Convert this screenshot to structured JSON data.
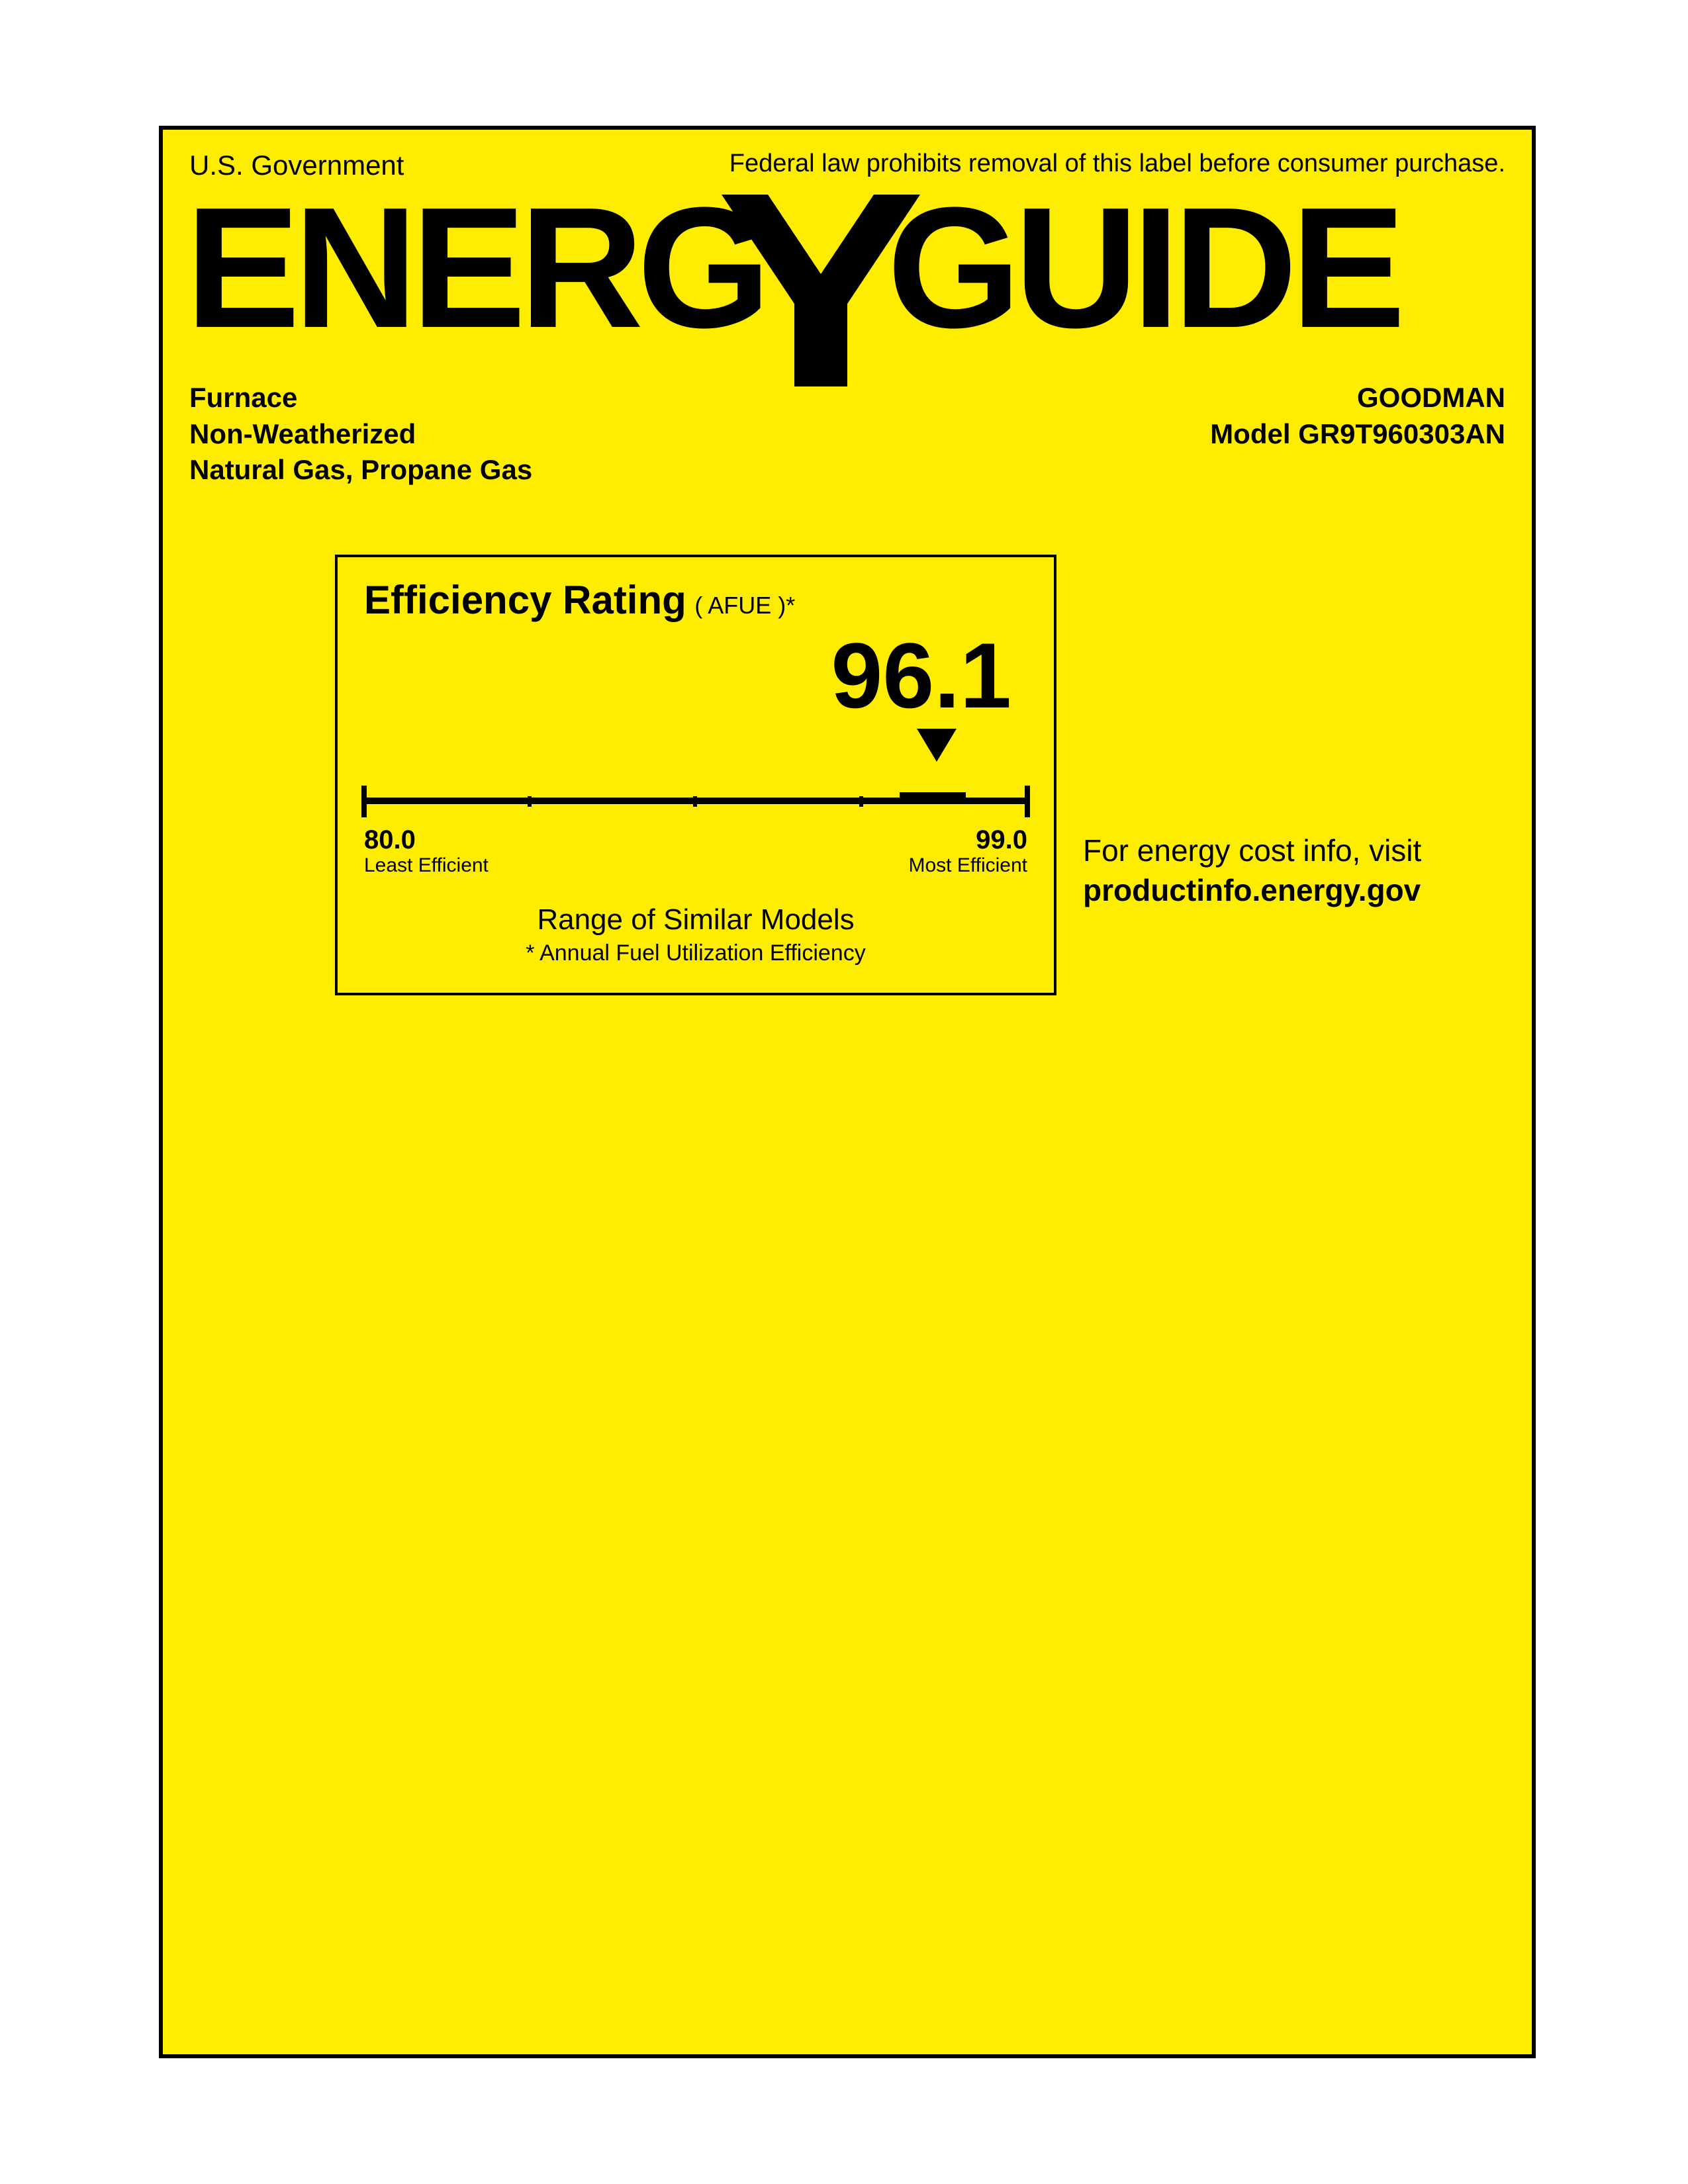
{
  "colors": {
    "label_bg": "#feed01",
    "text": "#000000",
    "border": "#000000",
    "page_bg": "#ffffff"
  },
  "header": {
    "gov": "U.S. Government",
    "federal_law": "Federal law prohibits removal of this label before consumer purchase."
  },
  "logo_alt": "ENERGYGUIDE",
  "product": {
    "type": "Furnace",
    "weather": "Non-Weatherized",
    "fuel": "Natural Gas, Propane Gas"
  },
  "manufacturer": {
    "brand": "GOODMAN",
    "model_prefix": "Model ",
    "model": "GR9T960303AN"
  },
  "rating": {
    "title": "Efficiency Rating",
    "subtitle": "( AFUE )*",
    "value": "96.1",
    "value_fontsize": 140,
    "scale": {
      "min": 80.0,
      "max": 99.0,
      "min_label": "80.0",
      "max_label": "99.0",
      "min_text": "Least Efficient",
      "max_text": "Most Efficient",
      "tick_positions_pct": [
        0,
        25,
        50,
        75,
        100
      ],
      "value_position_pct": 84.7,
      "line_thickness": 10
    },
    "range_text": "Range of Similar Models",
    "afue_note": "* Annual Fuel Utilization Efficiency"
  },
  "side": {
    "line1": "For energy cost info, visit",
    "line2": "productinfo.energy.gov"
  }
}
